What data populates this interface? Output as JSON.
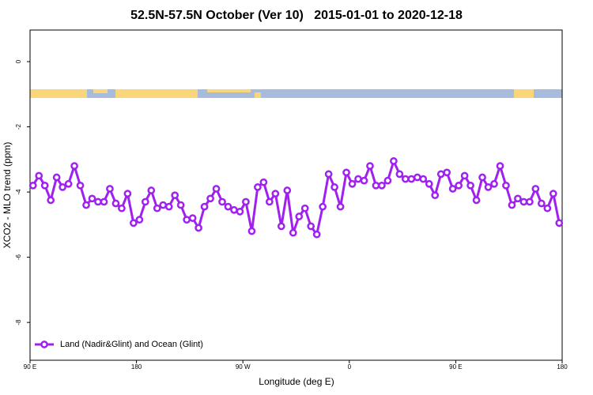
{
  "chart_data": {
    "type": "line",
    "title": "52.5N-57.5N October (Ver 10)   2015-01-01 to 2020-12-18",
    "x_label": "Longitude (deg E)",
    "y_label": "XCO2 - MLO trend (ppm)",
    "xlim": [
      90,
      540
    ],
    "xticks": [
      {
        "value": 90,
        "label": "90 E"
      },
      180,
      {
        "value": 270,
        "label": "90 W"
      },
      {
        "value": 360,
        "label": "0"
      },
      {
        "value": 450,
        "label": "90 E"
      },
      {
        "value": 540,
        "label": "180"
      }
    ],
    "ylim": [
      -9.16,
      0.97
    ],
    "yticks": [
      0,
      -2,
      -4,
      -6,
      -8
    ],
    "legend": "bottom-left",
    "x": [
      92.5,
      97.5,
      102.5,
      107.5,
      112.5,
      117.5,
      122.5,
      127.5,
      132.5,
      137.5,
      142.5,
      147.5,
      152.5,
      157.5,
      162.5,
      167.5,
      172.5,
      177.5,
      182.5,
      187.5,
      192.5,
      197.5,
      202.5,
      207.5,
      212.5,
      217.5,
      222.5,
      227.5,
      232.5,
      237.5,
      242.5,
      247.5,
      252.5,
      257.5,
      262.5,
      267.5,
      272.5,
      277.5,
      282.5,
      287.5,
      292.5,
      297.5,
      302.5,
      307.5,
      312.5,
      317.5,
      322.5,
      327.5,
      332.5,
      337.5,
      342.5,
      347.5,
      352.5,
      357.5,
      362.5,
      367.5,
      372.5,
      377.5,
      382.5,
      387.5,
      392.5,
      397.5,
      402.5,
      407.5,
      412.5,
      417.5,
      422.5,
      427.5,
      432.5,
      437.5,
      442.5,
      447.5,
      452.5,
      457.5,
      462.5,
      467.5,
      472.5,
      477.5,
      482.5,
      487.5,
      492.5,
      497.5,
      502.5,
      507.5,
      512.5,
      517.5,
      522.5,
      527.5,
      532.5,
      537.5
    ],
    "series": [
      {
        "name": "Land (Nadir&Glint) and Ocean (Glint)",
        "color": "#a020f0",
        "values": [
          -3.8,
          -3.5,
          -3.8,
          -4.25,
          -3.55,
          -3.85,
          -3.75,
          -3.2,
          -3.8,
          -4.4,
          -4.2,
          -4.3,
          -4.3,
          -3.9,
          -4.35,
          -4.5,
          -4.05,
          -4.95,
          -4.85,
          -4.3,
          -3.95,
          -4.5,
          -4.4,
          -4.45,
          -4.1,
          -4.4,
          -4.85,
          -4.8,
          -5.1,
          -4.45,
          -4.2,
          -3.9,
          -4.3,
          -4.45,
          -4.55,
          -4.6,
          -4.3,
          -5.2,
          -3.85,
          -3.7,
          -4.3,
          -4.05,
          -5.05,
          -3.95,
          -5.25,
          -4.75,
          -4.5,
          -5.05,
          -5.3,
          -4.45,
          -3.45,
          -3.85,
          -4.45,
          -3.4,
          -3.75,
          -3.6,
          -3.65,
          -3.2,
          -3.8,
          -3.8,
          -3.65,
          -3.05,
          -3.45,
          -3.6,
          -3.6,
          -3.55,
          -3.6,
          -3.75,
          -4.1,
          -3.45,
          -3.4,
          -3.9,
          -3.8,
          -3.5,
          -3.8,
          -4.25,
          -3.55,
          -3.85,
          -3.75,
          -3.2,
          -3.8,
          -4.4,
          -4.2,
          -4.3,
          -4.3,
          -3.9,
          -4.35,
          -4.5,
          -4.05,
          -4.95
        ]
      }
    ]
  }
}
